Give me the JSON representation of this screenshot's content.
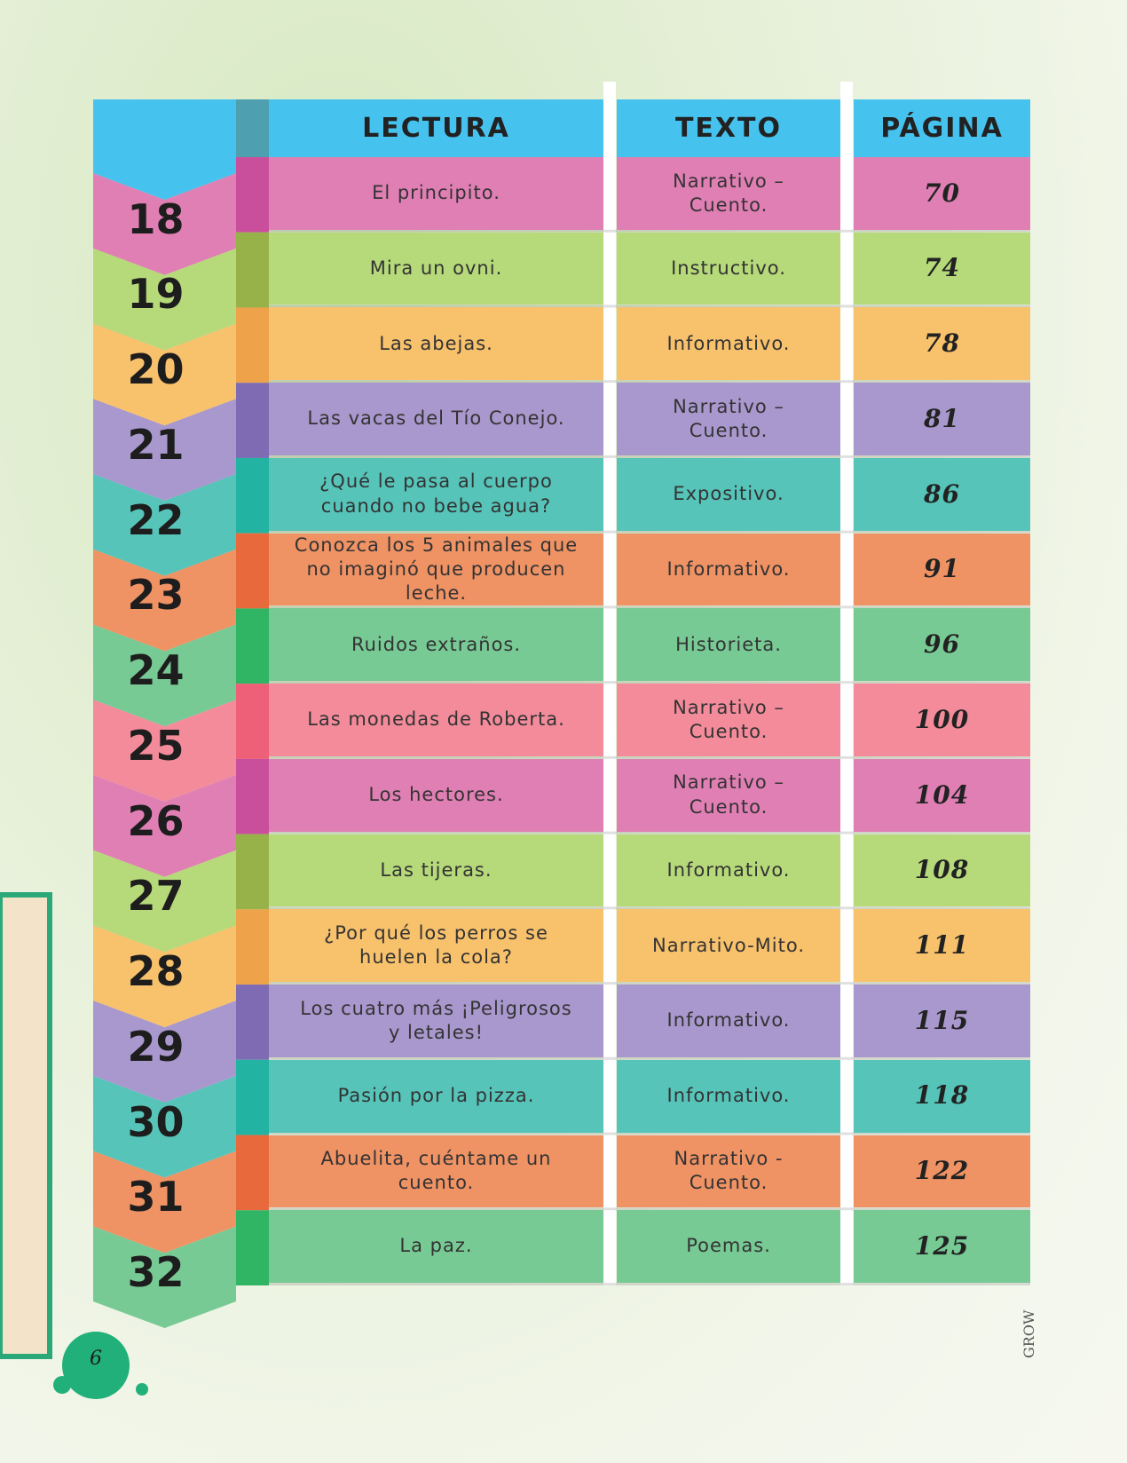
{
  "header": {
    "number": "",
    "lectura": "LECTURA",
    "texto": "TEXTO",
    "pagina": "PÁGINA"
  },
  "rows": [
    {
      "number": 18,
      "lectura": "El principito.",
      "texto": "Narrativo – Cuento.",
      "pagina": 70
    },
    {
      "number": 19,
      "lectura": "Mira un ovni.",
      "texto": "Instructivo.",
      "pagina": 74
    },
    {
      "number": 20,
      "lectura": "Las abejas.",
      "texto": "Informativo.",
      "pagina": 78
    },
    {
      "number": 21,
      "lectura": "Las vacas del Tío Conejo.",
      "texto": "Narrativo – Cuento.",
      "pagina": 81
    },
    {
      "number": 22,
      "lectura": "¿Qué le pasa al cuerpo cuando no bebe agua?",
      "texto": "Expositivo.",
      "pagina": 86
    },
    {
      "number": 23,
      "lectura": "Conozca los 5 animales que no imaginó que producen leche.",
      "texto": "Informativo.",
      "pagina": 91
    },
    {
      "number": 24,
      "lectura": "Ruidos extraños.",
      "texto": "Historieta.",
      "pagina": 96
    },
    {
      "number": 25,
      "lectura": "Las monedas de Roberta.",
      "texto": "Narrativo – Cuento.",
      "pagina": 100
    },
    {
      "number": 26,
      "lectura": "Los hectores.",
      "texto": "Narrativo – Cuento.",
      "pagina": 104
    },
    {
      "number": 27,
      "lectura": "Las tijeras.",
      "texto": "Informativo.",
      "pagina": 108
    },
    {
      "number": 28,
      "lectura": "¿Por qué los perros se huelen la cola?",
      "texto": "Narrativo-Mito.",
      "pagina": 111
    },
    {
      "number": 29,
      "lectura": "Los cuatro más ¡Peligrosos y letales!",
      "texto": "Informativo.",
      "pagina": 115
    },
    {
      "number": 30,
      "lectura": "Pasión por la pizza.",
      "texto": "Informativo.",
      "pagina": 118
    },
    {
      "number": 31,
      "lectura": "Abuelita, cuéntame un cuento.",
      "texto": "Narrativo - Cuento.",
      "pagina": 122
    },
    {
      "number": 32,
      "lectura": "La paz.",
      "texto": "Poemas.",
      "pagina": 125
    }
  ],
  "footer": {
    "page_number": 6,
    "brand": "GROW"
  }
}
